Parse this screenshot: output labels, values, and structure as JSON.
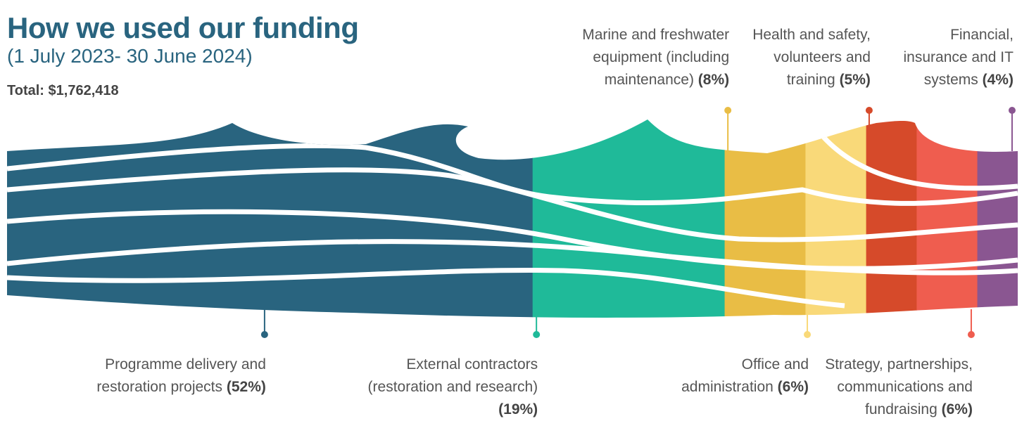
{
  "chart_data": {
    "type": "stacked",
    "title": "How we used our funding",
    "subtitle": "(1 July 2023- 30 June 2024)",
    "total_prefix": "Total:",
    "total": 1762418,
    "total_label": "$1,762,418",
    "categories": [
      "Programme delivery and restoration projects",
      "External contractors (restoration and research)",
      "Marine and freshwater equipment (including maintenance)",
      "Office and administration",
      "Health and safety, volunteers and training",
      "Strategy, partnerships, communications and fundraising",
      "Financial, insurance and IT systems"
    ],
    "values": [
      52,
      19,
      8,
      6,
      5,
      6,
      4
    ],
    "value_labels": [
      "(52%)",
      "(19%)",
      "(8%)",
      "(6%)",
      "(5%)",
      "(6%)",
      "(4%)"
    ],
    "colors": [
      "#29647f",
      "#1fba99",
      "#e9bd45",
      "#f9d979",
      "#d64a2a",
      "#ef5d4f",
      "#8a5691"
    ]
  }
}
